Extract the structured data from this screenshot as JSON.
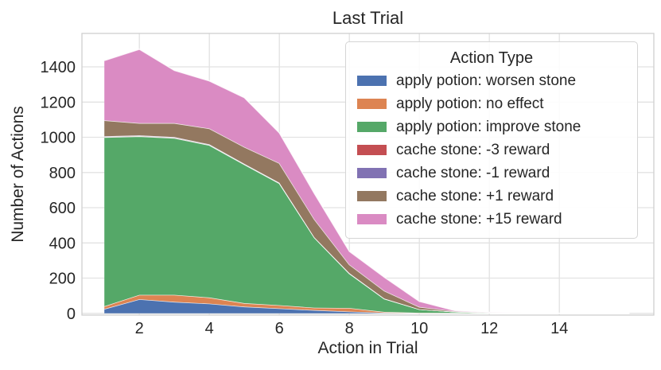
{
  "title": "Last Trial",
  "axes": {
    "xlabel": "Action in Trial",
    "ylabel": "Number of Actions"
  },
  "legend": {
    "title": "Action Type",
    "entries": [
      {
        "label": "apply potion: worsen stone",
        "color": "#4C72B0"
      },
      {
        "label": "apply potion: no effect",
        "color": "#DD8452"
      },
      {
        "label": "apply potion: improve stone",
        "color": "#55A868"
      },
      {
        "label": "cache stone: -3 reward",
        "color": "#C44E52"
      },
      {
        "label": "cache stone: -1 reward",
        "color": "#8172B3"
      },
      {
        "label": "cache stone: +1 reward",
        "color": "#937860"
      },
      {
        "label": "cache stone: +15 reward",
        "color": "#DA8BC3"
      }
    ]
  },
  "colors": {
    "text": "#262626",
    "grid": "#e2e2e2",
    "spine": "#cfcfcf",
    "background": "#ffffff"
  },
  "chart_data": {
    "type": "area",
    "stacked": true,
    "title": "Last Trial",
    "xlabel": "Action in Trial",
    "ylabel": "Number of Actions",
    "legend_title": "Action Type",
    "legend_position": "upper right",
    "grid": true,
    "x": [
      1,
      2,
      3,
      4,
      5,
      6,
      7,
      8,
      9,
      10,
      11,
      12,
      13,
      14,
      15,
      16
    ],
    "x_ticks": [
      2,
      4,
      6,
      8,
      10,
      12,
      14
    ],
    "y_ticks": [
      0,
      200,
      400,
      600,
      800,
      1000,
      1200,
      1400
    ],
    "xlim": [
      0.36,
      16.7
    ],
    "ylim": [
      -10,
      1590
    ],
    "series": [
      {
        "name": "apply potion: worsen stone",
        "color": "#4C72B0",
        "values": [
          25,
          80,
          65,
          55,
          38,
          28,
          18,
          10,
          3,
          1,
          1,
          0,
          0,
          0,
          0,
          0
        ]
      },
      {
        "name": "apply potion: no effect",
        "color": "#DD8452",
        "values": [
          15,
          25,
          40,
          35,
          20,
          18,
          14,
          20,
          5,
          2,
          1,
          0,
          0,
          0,
          0,
          0
        ]
      },
      {
        "name": "apply potion: improve stone",
        "color": "#55A868",
        "values": [
          960,
          900,
          890,
          865,
          787,
          692,
          398,
          196,
          74,
          20,
          7,
          3,
          1,
          0,
          0,
          0
        ]
      },
      {
        "name": "cache stone: -3 reward",
        "color": "#C44E52",
        "values": [
          3,
          3,
          3,
          2,
          2,
          2,
          1,
          1,
          1,
          0,
          0,
          0,
          0,
          0,
          0,
          0
        ]
      },
      {
        "name": "cache stone: -1 reward",
        "color": "#8172B3",
        "values": [
          3,
          3,
          3,
          3,
          2,
          2,
          1,
          1,
          1,
          0,
          0,
          0,
          0,
          0,
          0,
          0
        ]
      },
      {
        "name": "cache stone: +1 reward",
        "color": "#937860",
        "values": [
          90,
          69,
          79,
          90,
          96,
          111,
          102,
          49,
          44,
          13,
          3,
          1,
          1,
          0,
          0,
          0
        ]
      },
      {
        "name": "cache stone: +15 reward",
        "color": "#DA8BC3",
        "values": [
          340,
          420,
          300,
          270,
          280,
          172,
          147,
          75,
          77,
          32,
          4,
          2,
          0,
          0,
          0,
          0
        ]
      }
    ]
  }
}
